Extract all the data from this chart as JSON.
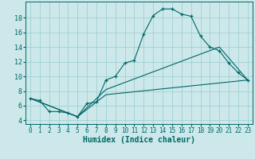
{
  "xlabel": "Humidex (Indice chaleur)",
  "background_color": "#cce8ea",
  "grid_color": "#99cccc",
  "line_color": "#006666",
  "xlim": [
    -0.5,
    23.5
  ],
  "ylim": [
    3.5,
    20.2
  ],
  "xticks": [
    0,
    1,
    2,
    3,
    4,
    5,
    6,
    7,
    8,
    9,
    10,
    11,
    12,
    13,
    14,
    15,
    16,
    17,
    18,
    19,
    20,
    21,
    22,
    23
  ],
  "yticks": [
    4,
    6,
    8,
    10,
    12,
    14,
    16,
    18
  ],
  "main_x": [
    0,
    1,
    2,
    3,
    4,
    5,
    6,
    7,
    8,
    9,
    10,
    11,
    12,
    13,
    14,
    15,
    16,
    17,
    18,
    19,
    20,
    21,
    22,
    23
  ],
  "main_y": [
    7.0,
    6.7,
    5.2,
    5.2,
    5.0,
    4.5,
    6.3,
    6.5,
    9.5,
    10.0,
    11.8,
    12.2,
    15.8,
    18.3,
    19.2,
    19.2,
    18.5,
    18.2,
    15.5,
    14.0,
    13.5,
    11.8,
    10.5,
    9.5
  ],
  "line2_x": [
    0,
    5,
    8,
    20,
    23
  ],
  "line2_y": [
    7.0,
    4.5,
    8.2,
    14.0,
    9.5
  ],
  "line3_x": [
    0,
    5,
    8,
    23
  ],
  "line3_y": [
    7.0,
    4.5,
    7.5,
    9.5
  ]
}
